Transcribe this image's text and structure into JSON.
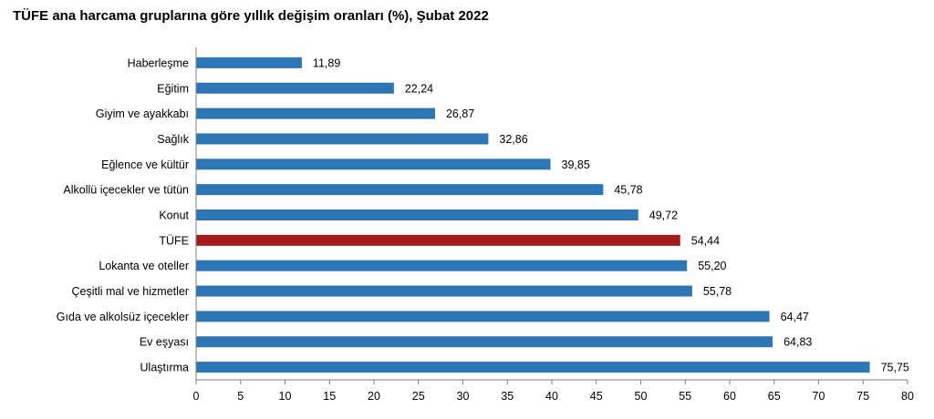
{
  "chart_data": {
    "type": "bar",
    "orientation": "horizontal",
    "title": "TÜFE ana harcama gruplarına göre yıllık değişim oranları (%), Şubat 2022",
    "categories": [
      "Haberleşme",
      "Eğitim",
      "Giyim ve ayakkabı",
      "Sağlık",
      "Eğlence ve kültür",
      "Alkollü içecekler ve tütün",
      "Konut",
      "TÜFE",
      "Lokanta ve oteller",
      "Çeşitli mal ve hizmetler",
      "Gıda ve alkolsüz içecekler",
      "Ev eşyası",
      "Ulaştırma"
    ],
    "values": [
      11.89,
      22.24,
      26.87,
      32.86,
      39.85,
      45.78,
      49.72,
      54.44,
      55.2,
      55.78,
      64.47,
      64.83,
      75.75
    ],
    "value_labels": [
      "11,89",
      "22,24",
      "26,87",
      "32,86",
      "39,85",
      "45,78",
      "49,72",
      "54,44",
      "55,20",
      "55,78",
      "64,47",
      "64,83",
      "75,75"
    ],
    "highlight_category": "TÜFE",
    "xlim": [
      0,
      80
    ],
    "xticks": [
      0,
      5,
      10,
      15,
      20,
      25,
      30,
      35,
      40,
      45,
      50,
      55,
      60,
      65,
      70,
      75,
      80
    ],
    "grid": false,
    "legend": "none",
    "colors": {
      "bar": "#2e75b6",
      "highlight": "#a31b1b",
      "axis": "#7f7f7f"
    }
  }
}
